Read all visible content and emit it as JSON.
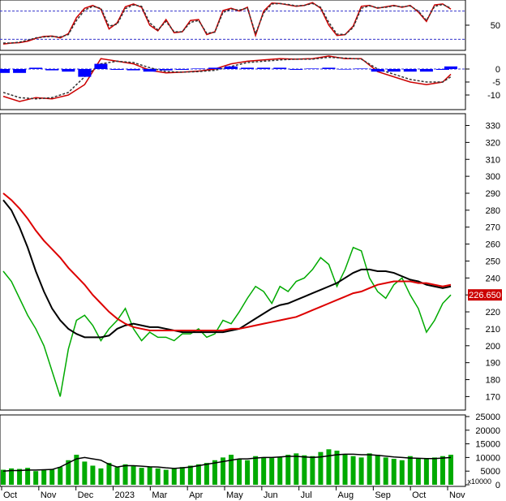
{
  "chart_data": [
    {
      "type": "line",
      "panel": "oscillator",
      "title": "",
      "ylim": [
        0,
        100
      ],
      "reference_lines": [
        20,
        80
      ],
      "y_ticks": [
        "50"
      ],
      "series": [
        {
          "color": "#cc0000",
          "x": [
            0,
            10,
            20,
            30,
            40,
            50,
            60,
            70,
            80,
            90,
            100,
            110,
            120,
            130,
            140,
            150,
            160,
            170,
            180,
            190,
            200,
            210,
            220,
            230,
            240,
            250,
            260,
            270,
            280,
            290,
            300,
            310,
            320,
            330,
            340,
            350,
            360,
            370,
            380,
            390,
            400,
            410,
            420,
            430,
            440,
            450,
            460,
            470,
            480,
            490,
            500,
            510,
            520,
            530,
            540,
            550
          ],
          "y": [
            10,
            12,
            13,
            16,
            22,
            26,
            27,
            23,
            32,
            66,
            86,
            92,
            84,
            42,
            55,
            89,
            95,
            88,
            50,
            38,
            62,
            34,
            36,
            60,
            62,
            30,
            36,
            81,
            86,
            80,
            88,
            28,
            80,
            97,
            96,
            93,
            90,
            92,
            98,
            86,
            50,
            28,
            30,
            48,
            90,
            92,
            86,
            89,
            92,
            88,
            92,
            78,
            58,
            93,
            95,
            84
          ]
        },
        {
          "color": "#333333",
          "x": [
            0,
            10,
            20,
            30,
            40,
            50,
            60,
            70,
            80,
            90,
            100,
            110,
            120,
            130,
            140,
            150,
            160,
            170,
            180,
            190,
            200,
            210,
            220,
            230,
            240,
            250,
            260,
            270,
            280,
            290,
            300,
            310,
            320,
            330,
            340,
            350,
            360,
            370,
            380,
            390,
            400,
            410,
            420,
            430,
            440,
            450,
            460,
            470,
            480,
            490,
            500,
            510,
            520,
            530,
            540,
            550
          ],
          "y": [
            12,
            12,
            14,
            18,
            23,
            25,
            26,
            25,
            30,
            60,
            82,
            90,
            86,
            48,
            52,
            85,
            93,
            90,
            55,
            40,
            58,
            36,
            36,
            56,
            60,
            33,
            35,
            77,
            84,
            82,
            86,
            32,
            76,
            95,
            96,
            94,
            91,
            92,
            96,
            88,
            56,
            31,
            30,
            45,
            86,
            91,
            87,
            88,
            91,
            89,
            91,
            80,
            60,
            90,
            94,
            86
          ]
        }
      ]
    },
    {
      "type": "line",
      "panel": "macd",
      "title": "",
      "ylim": [
        -15,
        5
      ],
      "y_ticks": [
        "0",
        "-5",
        "-10"
      ],
      "series": [
        {
          "color": "#cc0000",
          "x": [
            0,
            20,
            40,
            60,
            80,
            100,
            120,
            140,
            160,
            180,
            200,
            220,
            240,
            260,
            280,
            300,
            320,
            340,
            360,
            380,
            400,
            420,
            440,
            460,
            480,
            500,
            520,
            540,
            550
          ],
          "y": [
            -10.5,
            -12.5,
            -11,
            -11.5,
            -10,
            -6,
            4,
            3,
            2,
            -0.5,
            -1.5,
            -1.2,
            -0.8,
            0,
            2,
            3,
            3.5,
            4,
            3.8,
            4,
            5,
            4,
            4,
            -1,
            -3,
            -5,
            -6,
            -5,
            -2
          ]
        },
        {
          "color": "#333333",
          "x": [
            0,
            20,
            40,
            60,
            80,
            100,
            120,
            140,
            160,
            180,
            200,
            220,
            240,
            260,
            280,
            300,
            320,
            340,
            360,
            380,
            400,
            420,
            440,
            460,
            480,
            500,
            520,
            540,
            550
          ],
          "y": [
            -9,
            -11,
            -11.5,
            -11,
            -9,
            -3,
            2,
            3,
            2.5,
            0.5,
            -1,
            -1.2,
            -1,
            -0.5,
            1,
            2.5,
            3,
            3.5,
            3.8,
            3.8,
            4.5,
            4.2,
            3.8,
            0,
            -2,
            -4,
            -5,
            -5,
            -3
          ]
        },
        {
          "color": "#0000ff",
          "type": "histogram",
          "x": [
            0,
            20,
            40,
            60,
            80,
            100,
            120,
            140,
            160,
            180,
            200,
            220,
            240,
            260,
            280,
            300,
            320,
            340,
            360,
            380,
            400,
            420,
            440,
            460,
            480,
            500,
            520,
            540,
            550
          ],
          "y": [
            -1.5,
            -1.5,
            0.5,
            -0.5,
            -1,
            -3,
            2,
            0,
            -0.5,
            -1,
            -0.5,
            0,
            0.2,
            0.5,
            1,
            0.5,
            0.5,
            0.5,
            0,
            0.2,
            0.5,
            -0.2,
            0.2,
            -1,
            -1,
            -1,
            -1,
            0,
            1
          ]
        }
      ]
    },
    {
      "type": "line",
      "panel": "price",
      "title": "",
      "ylim": [
        163,
        336
      ],
      "y_ticks": [
        "330",
        "320",
        "310",
        "300",
        "290",
        "280",
        "270",
        "260",
        "250",
        "240",
        "230",
        "220",
        "210",
        "200",
        "190",
        "180",
        "170"
      ],
      "last_price_label": "226.650",
      "series": [
        {
          "color": "#00aa00",
          "name": "",
          "x": [
            0,
            10,
            20,
            30,
            40,
            50,
            60,
            70,
            80,
            90,
            100,
            110,
            120,
            130,
            140,
            150,
            160,
            170,
            180,
            190,
            200,
            210,
            220,
            230,
            240,
            250,
            260,
            270,
            280,
            290,
            300,
            310,
            320,
            330,
            340,
            350,
            360,
            370,
            380,
            390,
            400,
            410,
            420,
            430,
            440,
            450,
            460,
            470,
            480,
            490,
            500,
            510,
            520,
            530,
            540,
            550
          ],
          "y": [
            244,
            238,
            228,
            218,
            210,
            200,
            185,
            170,
            198,
            215,
            218,
            212,
            203,
            210,
            215,
            222,
            210,
            203,
            208,
            205,
            205,
            203,
            207,
            207,
            210,
            205,
            207,
            215,
            213,
            220,
            228,
            235,
            232,
            225,
            235,
            232,
            238,
            240,
            245,
            252,
            248,
            235,
            245,
            258,
            256,
            240,
            232,
            228,
            236,
            240,
            230,
            222,
            208,
            215,
            225,
            230
          ]
        },
        {
          "color": "#000000",
          "name": "",
          "x": [
            0,
            10,
            20,
            30,
            40,
            50,
            60,
            70,
            80,
            90,
            100,
            110,
            120,
            130,
            140,
            150,
            160,
            170,
            180,
            190,
            200,
            210,
            220,
            230,
            240,
            250,
            260,
            270,
            280,
            290,
            300,
            310,
            320,
            330,
            340,
            350,
            360,
            370,
            380,
            390,
            400,
            410,
            420,
            430,
            440,
            450,
            460,
            470,
            480,
            490,
            500,
            510,
            520,
            530,
            540,
            550
          ],
          "y": [
            286,
            280,
            270,
            258,
            244,
            232,
            222,
            215,
            210,
            207,
            205,
            205,
            205,
            206,
            210,
            212,
            213,
            212,
            211,
            211,
            210,
            209,
            208,
            208,
            208,
            208,
            208,
            208,
            209,
            210,
            213,
            216,
            219,
            222,
            224,
            225,
            227,
            229,
            231,
            233,
            235,
            237,
            240,
            243,
            245,
            245,
            244,
            244,
            243,
            241,
            239,
            238,
            236,
            235,
            234,
            235
          ]
        },
        {
          "color": "#dd0000",
          "name": "",
          "x": [
            0,
            10,
            20,
            30,
            40,
            50,
            60,
            70,
            80,
            90,
            100,
            110,
            120,
            130,
            140,
            150,
            160,
            170,
            180,
            190,
            200,
            210,
            220,
            230,
            240,
            250,
            260,
            270,
            280,
            290,
            300,
            310,
            320,
            330,
            340,
            350,
            360,
            370,
            380,
            390,
            400,
            410,
            420,
            430,
            440,
            450,
            460,
            470,
            480,
            490,
            500,
            510,
            520,
            530,
            540,
            550
          ],
          "y": [
            290,
            286,
            281,
            275,
            268,
            262,
            257,
            252,
            246,
            241,
            236,
            230,
            225,
            220,
            216,
            213,
            211,
            210,
            209,
            209,
            209,
            209,
            209,
            209,
            209,
            209,
            209,
            209,
            210,
            210,
            211,
            212,
            213,
            214,
            215,
            216,
            217,
            219,
            221,
            223,
            225,
            227,
            229,
            231,
            232,
            234,
            236,
            237,
            238,
            238,
            238,
            237,
            237,
            236,
            235,
            236
          ]
        }
      ]
    },
    {
      "type": "bar",
      "panel": "volume",
      "title": "",
      "ylim": [
        0,
        25000
      ],
      "y_ticks": [
        "25000",
        "20000",
        "15000",
        "10000",
        "5000",
        "0"
      ],
      "unit_label": "x10000",
      "x_tick_labels": [
        "Oct",
        "Nov",
        "Dec",
        "2023",
        "Mar",
        "Apr",
        "May",
        "Jun",
        "Jul",
        "Aug",
        "Sep",
        "Oct",
        "Nov"
      ],
      "series": [
        {
          "color": "#00aa00",
          "name": "",
          "values": [
            5500,
            6000,
            5800,
            6200,
            5000,
            5400,
            5600,
            6500,
            9000,
            11000,
            8500,
            7000,
            6000,
            8000,
            6500,
            7500,
            6800,
            6200,
            6500,
            6000,
            5500,
            6000,
            6500,
            7000,
            7500,
            8000,
            9000,
            10000,
            11000,
            9500,
            9000,
            10500,
            10000,
            9800,
            10200,
            11000,
            11500,
            10800,
            10500,
            12000,
            13000,
            12500,
            11000,
            10500,
            10000,
            11500,
            11000,
            10000,
            9500,
            9000,
            10500,
            9800,
            9500,
            10000,
            10500,
            11000
          ]
        },
        {
          "color": "#000000",
          "name": "",
          "type": "line",
          "values": [
            5000,
            5200,
            5200,
            5400,
            5400,
            5500,
            5600,
            6500,
            8000,
            9500,
            10000,
            9500,
            9000,
            7500,
            6500,
            7000,
            7000,
            6800,
            6600,
            6500,
            6200,
            6000,
            6200,
            6500,
            7000,
            7500,
            8000,
            8500,
            9000,
            9500,
            9500,
            9800,
            10000,
            10000,
            10200,
            10400,
            10400,
            10200,
            10000,
            10200,
            10600,
            11000,
            11200,
            11200,
            11000,
            11000,
            10800,
            10500,
            10200,
            10000,
            9800,
            9700,
            9600,
            9600,
            9800,
            10000
          ]
        }
      ]
    }
  ]
}
